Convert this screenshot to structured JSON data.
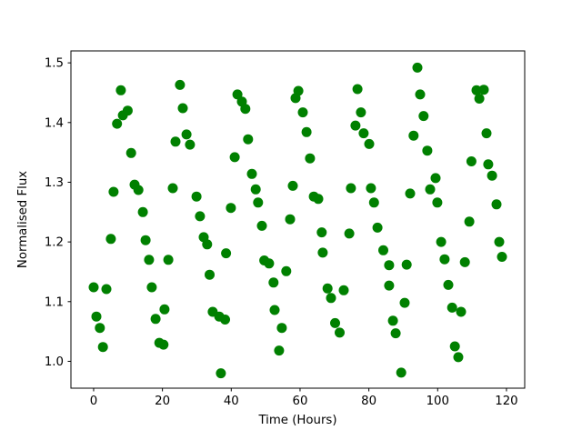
{
  "chart_data": {
    "type": "scatter",
    "title": "",
    "xlabel": "Time (Hours)",
    "ylabel": "Normalised Flux",
    "xlim": [
      -6.6,
      125.3
    ],
    "ylim": [
      0.955,
      1.52
    ],
    "xticks": [
      0,
      20,
      40,
      60,
      80,
      100,
      120
    ],
    "yticks": [
      1.0,
      1.1,
      1.2,
      1.3,
      1.4,
      1.5
    ],
    "grid": false,
    "legend": null,
    "marker": {
      "shape": "circle",
      "color": "#008000",
      "radius_px": 5.5
    },
    "axis_color": "#000000",
    "background_color": "#ffffff",
    "points": [
      [
        0.0,
        1.124
      ],
      [
        3.7,
        1.121
      ],
      [
        0.8,
        1.075
      ],
      [
        1.8,
        1.056
      ],
      [
        2.7,
        1.024
      ],
      [
        7.9,
        1.454
      ],
      [
        8.5,
        1.412
      ],
      [
        9.9,
        1.42
      ],
      [
        6.8,
        1.398
      ],
      [
        10.9,
        1.349
      ],
      [
        5.8,
        1.284
      ],
      [
        5.0,
        1.205
      ],
      [
        11.9,
        1.296
      ],
      [
        13.0,
        1.287
      ],
      [
        14.3,
        1.25
      ],
      [
        15.1,
        1.203
      ],
      [
        16.1,
        1.17
      ],
      [
        16.9,
        1.124
      ],
      [
        18.0,
        1.071
      ],
      [
        20.6,
        1.087
      ],
      [
        19.1,
        1.031
      ],
      [
        20.3,
        1.028
      ],
      [
        21.7,
        1.17
      ],
      [
        25.1,
        1.463
      ],
      [
        25.9,
        1.424
      ],
      [
        27.0,
        1.38
      ],
      [
        23.8,
        1.368
      ],
      [
        28.0,
        1.363
      ],
      [
        23.0,
        1.29
      ],
      [
        29.9,
        1.276
      ],
      [
        30.9,
        1.243
      ],
      [
        32.0,
        1.208
      ],
      [
        33.0,
        1.196
      ],
      [
        33.7,
        1.145
      ],
      [
        34.6,
        1.083
      ],
      [
        36.5,
        1.075
      ],
      [
        38.2,
        1.07
      ],
      [
        38.5,
        1.181
      ],
      [
        37.0,
        0.98
      ],
      [
        41.0,
        1.342
      ],
      [
        39.9,
        1.257
      ],
      [
        41.8,
        1.447
      ],
      [
        43.1,
        1.435
      ],
      [
        44.1,
        1.423
      ],
      [
        44.9,
        1.372
      ],
      [
        46.0,
        1.314
      ],
      [
        47.1,
        1.288
      ],
      [
        47.8,
        1.266
      ],
      [
        48.9,
        1.227
      ],
      [
        49.6,
        1.169
      ],
      [
        51.0,
        1.164
      ],
      [
        52.3,
        1.132
      ],
      [
        52.6,
        1.086
      ],
      [
        54.7,
        1.056
      ],
      [
        53.9,
        1.018
      ],
      [
        56.0,
        1.151
      ],
      [
        57.1,
        1.238
      ],
      [
        57.9,
        1.294
      ],
      [
        59.5,
        1.453
      ],
      [
        58.7,
        1.441
      ],
      [
        60.8,
        1.417
      ],
      [
        61.9,
        1.384
      ],
      [
        62.9,
        1.34
      ],
      [
        64.0,
        1.276
      ],
      [
        65.3,
        1.272
      ],
      [
        66.3,
        1.216
      ],
      [
        66.6,
        1.182
      ],
      [
        68.0,
        1.122
      ],
      [
        72.7,
        1.119
      ],
      [
        69.0,
        1.106
      ],
      [
        70.2,
        1.064
      ],
      [
        71.5,
        1.048
      ],
      [
        74.3,
        1.214
      ],
      [
        74.8,
        1.29
      ],
      [
        76.7,
        1.456
      ],
      [
        77.7,
        1.417
      ],
      [
        76.1,
        1.395
      ],
      [
        78.5,
        1.382
      ],
      [
        80.1,
        1.364
      ],
      [
        80.6,
        1.29
      ],
      [
        81.5,
        1.266
      ],
      [
        82.5,
        1.224
      ],
      [
        84.2,
        1.186
      ],
      [
        85.9,
        1.161
      ],
      [
        91.0,
        1.162
      ],
      [
        85.9,
        1.127
      ],
      [
        90.4,
        1.098
      ],
      [
        87.0,
        1.068
      ],
      [
        87.8,
        1.047
      ],
      [
        89.4,
        0.981
      ],
      [
        94.1,
        1.492
      ],
      [
        94.9,
        1.447
      ],
      [
        95.9,
        1.411
      ],
      [
        93.0,
        1.378
      ],
      [
        97.0,
        1.353
      ],
      [
        92.0,
        1.281
      ],
      [
        97.8,
        1.288
      ],
      [
        99.4,
        1.307
      ],
      [
        99.9,
        1.266
      ],
      [
        101.0,
        1.2
      ],
      [
        102.0,
        1.171
      ],
      [
        103.1,
        1.128
      ],
      [
        104.2,
        1.09
      ],
      [
        106.8,
        1.083
      ],
      [
        105.0,
        1.025
      ],
      [
        106.0,
        1.007
      ],
      [
        107.9,
        1.166
      ],
      [
        111.3,
        1.454
      ],
      [
        113.4,
        1.455
      ],
      [
        112.1,
        1.44
      ],
      [
        114.2,
        1.382
      ],
      [
        109.8,
        1.335
      ],
      [
        114.7,
        1.33
      ],
      [
        115.8,
        1.311
      ],
      [
        117.1,
        1.263
      ],
      [
        109.2,
        1.234
      ],
      [
        117.9,
        1.2
      ],
      [
        118.7,
        1.175
      ]
    ]
  }
}
